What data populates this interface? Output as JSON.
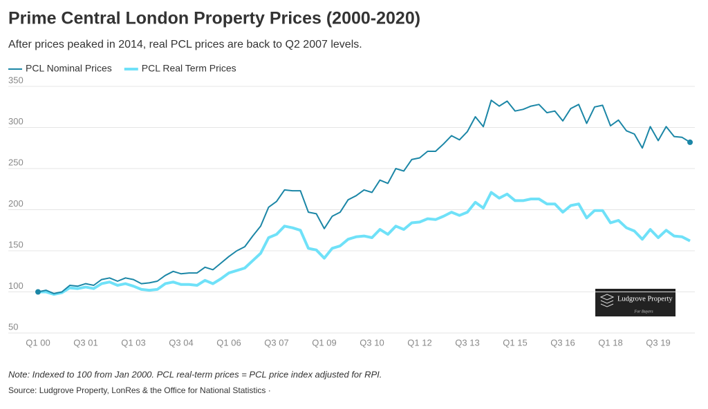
{
  "chart_data": {
    "type": "line",
    "title": "Prime Central London Property Prices (2000-2020)",
    "subtitle": "After prices peaked in 2014, real PCL prices are back to Q2 2007 levels.",
    "note": "Note: Indexed to 100 from Jan 2000. PCL real-term prices = PCL price index adjusted for RPI.",
    "source": "Source: Ludgrove Property, LonRes & the Office for National Statistics ·",
    "logo": {
      "name": "Ludgrove Property",
      "tagline": "For Buyers"
    },
    "categories": [
      "Q1 00",
      null,
      null,
      null,
      null,
      null,
      "Q3 01",
      null,
      null,
      null,
      null,
      null,
      "Q1 03",
      null,
      null,
      null,
      null,
      null,
      "Q3 04",
      null,
      null,
      null,
      null,
      null,
      "Q1 06",
      null,
      null,
      null,
      null,
      null,
      "Q3 07",
      null,
      null,
      null,
      null,
      null,
      "Q1 09",
      null,
      null,
      null,
      null,
      null,
      "Q3 10",
      null,
      null,
      null,
      null,
      null,
      "Q1 12",
      null,
      null,
      null,
      null,
      null,
      "Q3 13",
      null,
      null,
      null,
      null,
      null,
      "Q1 15",
      null,
      null,
      null,
      null,
      null,
      "Q3 16",
      null,
      null,
      null,
      null,
      null,
      "Q1 18",
      null,
      null,
      null,
      null,
      null,
      "Q3 19",
      null,
      null,
      null,
      null
    ],
    "series": [
      {
        "name": "PCL Nominal Prices",
        "color": "#1b86a6",
        "width": 2,
        "values": [
          100,
          102,
          98,
          100,
          108,
          107,
          110,
          108,
          115,
          117,
          113,
          117,
          115,
          110,
          111,
          113,
          120,
          125,
          122,
          123,
          123,
          130,
          127,
          135,
          143,
          150,
          155,
          168,
          180,
          203,
          210,
          224,
          223,
          223,
          197,
          195,
          177,
          192,
          197,
          212,
          217,
          224,
          221,
          236,
          232,
          250,
          247,
          261,
          263,
          271,
          271,
          280,
          290,
          285,
          295,
          313,
          301,
          333,
          326,
          332,
          320,
          322,
          326,
          328,
          318,
          320,
          308,
          323,
          328,
          305,
          325,
          327,
          302,
          309,
          296,
          292,
          275,
          301,
          284,
          301,
          289,
          288,
          282
        ]
      },
      {
        "name": "PCL Real Term Prices",
        "color": "#6fe1f8",
        "width": 4,
        "values": [
          100,
          100,
          97,
          99,
          105,
          104,
          106,
          104,
          110,
          112,
          108,
          110,
          107,
          103,
          102,
          103,
          110,
          112,
          109,
          109,
          108,
          114,
          110,
          116,
          123,
          126,
          129,
          138,
          147,
          166,
          170,
          180,
          178,
          175,
          153,
          151,
          141,
          153,
          156,
          164,
          167,
          168,
          166,
          176,
          170,
          180,
          176,
          184,
          185,
          189,
          188,
          192,
          197,
          193,
          197,
          209,
          202,
          221,
          214,
          219,
          211,
          211,
          213,
          213,
          207,
          207,
          197,
          205,
          207,
          190,
          199,
          199,
          184,
          187,
          178,
          174,
          164,
          176,
          166,
          175,
          168,
          167,
          162
        ]
      }
    ],
    "ylim": [
      50,
      350
    ],
    "yticks": [
      50,
      100,
      150,
      200,
      250,
      300,
      350
    ],
    "grid": true
  }
}
